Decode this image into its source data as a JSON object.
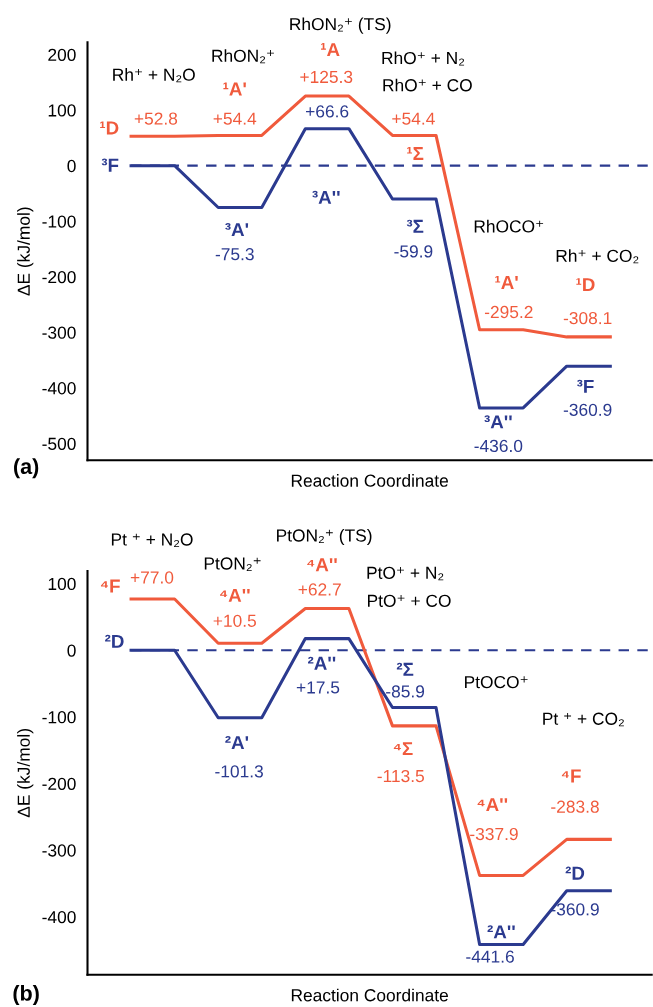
{
  "chart_data": [
    {
      "type": "line",
      "xlabel": "Reaction Coordinate",
      "ylabel": "ΔE (kJ/mol)",
      "tick_labels": "y",
      "categories": [
        null,
        null,
        null,
        null,
        null,
        null,
        null,
        null,
        null,
        null,
        null,
        null
      ],
      "ylim": [
        -530,
        222
      ],
      "yticks": [
        200,
        100,
        0,
        -100,
        -200,
        -300,
        -400,
        -500
      ],
      "series": [
        {
          "color": "#f05a3c",
          "values": [
            52.8,
            52.8,
            54.4,
            54.4,
            125.3,
            125.3,
            54.4,
            54.4,
            -295.2,
            -295.2,
            -308.1,
            -308.1
          ],
          "value_labels": [
            "+52.8",
            null,
            "+54.4",
            null,
            "+125.3",
            null,
            "+54.4",
            null,
            "-295.2",
            null,
            "-308.1",
            null
          ]
        },
        {
          "color": "#2b3a8f",
          "values": [
            0,
            0,
            -75.3,
            -75.3,
            66.6,
            66.6,
            -59.9,
            -59.9,
            -436.0,
            -436.0,
            -360.9,
            -360.9
          ],
          "value_labels": [
            null,
            null,
            "-75.3",
            null,
            "+66.6",
            null,
            "-59.9",
            null,
            "-436.0",
            null,
            "-360.9",
            null
          ]
        }
      ],
      "ref_lines": [
        {
          "axis": "y",
          "value": 0,
          "color": "#2b3a8f",
          "line_style": "dashed"
        }
      ],
      "annotations": [
        "Rh⁺ + N₂O",
        "RhON₂⁺",
        "RhON₂⁺ (TS)",
        "¹A",
        "RhO⁺ + N₂",
        "RhO⁺ + CO",
        "¹D",
        "¹A'",
        "¹Σ",
        "³F",
        "³A'",
        "³A''",
        "³Σ",
        "RhOCO⁺",
        "Rh⁺ + CO₂",
        "¹A'",
        "¹D",
        "³F",
        "³A''",
        "(a)"
      ]
    },
    {
      "type": "line",
      "xlabel": "Reaction Coordinate",
      "ylabel": "ΔE (kJ/mol)",
      "tick_labels": "y",
      "categories": [
        null,
        null,
        null,
        null,
        null,
        null,
        null,
        null,
        null,
        null,
        null,
        null
      ],
      "ylim": [
        -487,
        119
      ],
      "yticks": [
        100,
        0,
        -100,
        -200,
        -300,
        -400
      ],
      "series": [
        {
          "color": "#f05a3c",
          "values": [
            77.0,
            77.0,
            10.5,
            10.5,
            62.7,
            62.7,
            -113.5,
            -113.5,
            -337.9,
            -337.9,
            -283.8,
            -283.8
          ],
          "value_labels": [
            "+77.0",
            null,
            "+10.5",
            null,
            "+62.7",
            null,
            "-113.5",
            null,
            "-337.9",
            null,
            "-283.8",
            null
          ]
        },
        {
          "color": "#2b3a8f",
          "values": [
            0,
            0,
            -101.3,
            -101.3,
            17.5,
            17.5,
            -85.9,
            -85.9,
            -441.6,
            -441.6,
            -360.9,
            -360.9
          ],
          "value_labels": [
            null,
            null,
            "-101.3",
            null,
            "+17.5",
            null,
            "-85.9",
            null,
            "-441.6",
            null,
            "-360.9",
            null
          ]
        }
      ],
      "ref_lines": [
        {
          "axis": "y",
          "value": 0,
          "color": "#2b3a8f",
          "line_style": "dashed"
        }
      ],
      "annotations": [
        "Pt ⁺ + N₂O",
        "PtON₂⁺",
        "PtON₂⁺ (TS)",
        "⁴A''",
        "PtO⁺ + N₂",
        "PtO⁺ + CO",
        "⁴F",
        "⁴A''",
        "²D",
        "²A''",
        "²Σ",
        "PtOCO⁺",
        "Pt ⁺ + CO₂",
        "²A'",
        "⁴Σ",
        "⁴F",
        "⁴A''",
        "²D",
        "²A''",
        "(b)"
      ]
    }
  ]
}
